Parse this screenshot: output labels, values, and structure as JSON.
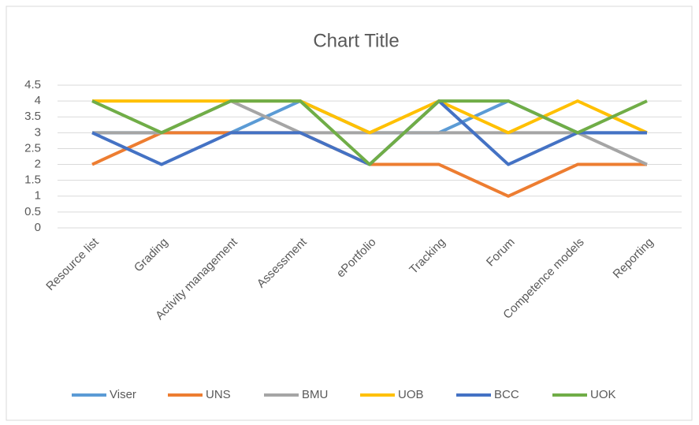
{
  "chart_data": {
    "type": "line",
    "title": "Chart Title",
    "categories": [
      "Resource list",
      "Grading",
      "Activity management",
      "Assessment",
      "ePortfolio",
      "Tracking",
      "Forum",
      "Competence models",
      "Reporting"
    ],
    "series": [
      {
        "name": "Viser",
        "color": "#5b9bd5",
        "values": [
          3,
          3,
          3,
          4,
          3,
          3,
          4,
          3,
          3
        ]
      },
      {
        "name": "UNS",
        "color": "#ed7d31",
        "values": [
          2,
          3,
          3,
          3,
          2,
          2,
          1,
          2,
          2
        ]
      },
      {
        "name": "BMU",
        "color": "#a5a5a5",
        "values": [
          3,
          3,
          4,
          3,
          3,
          3,
          3,
          3,
          2
        ]
      },
      {
        "name": "UOB",
        "color": "#ffc000",
        "values": [
          4,
          4,
          4,
          4,
          3,
          4,
          3,
          4,
          3
        ]
      },
      {
        "name": "BCC",
        "color": "#4472c4",
        "values": [
          3,
          2,
          3,
          3,
          2,
          4,
          2,
          3,
          3
        ]
      },
      {
        "name": "UOK",
        "color": "#70ad47",
        "values": [
          4,
          3,
          4,
          4,
          2,
          4,
          4,
          3,
          4
        ]
      }
    ],
    "ylim": [
      0,
      4.5
    ],
    "yticks": [
      0,
      0.5,
      1,
      1.5,
      2,
      2.5,
      3,
      3.5,
      4,
      4.5
    ],
    "grid": true,
    "legend": "bottom"
  }
}
